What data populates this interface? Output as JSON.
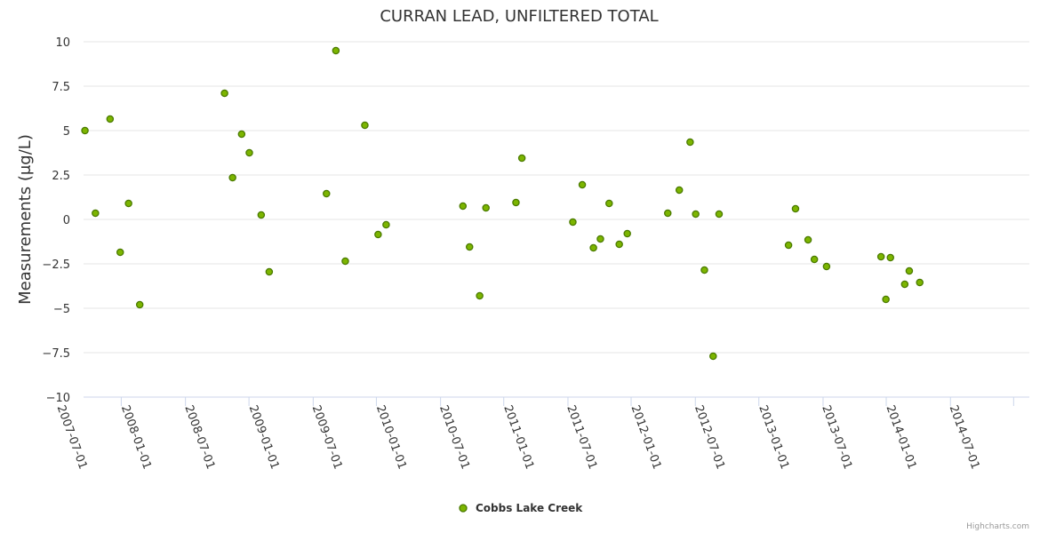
{
  "credits": "Highcharts.com",
  "chart_data": {
    "type": "scatter",
    "title": "CURRAN LEAD, UNFILTERED TOTAL",
    "ylabel": "Measurements (μg/L)",
    "xlabel": "",
    "ylim": [
      -10,
      10
    ],
    "yticks": [
      10,
      7.5,
      5,
      2.5,
      0,
      -2.5,
      -5,
      -7.5,
      -10
    ],
    "ytick_labels": [
      "10",
      "7.5",
      "5",
      "2.5",
      "0",
      "−2.5",
      "−5",
      "−7.5",
      "−10"
    ],
    "xlim": [
      "2007-03-15",
      "2014-08-15"
    ],
    "xticks": [
      "2007-07-01",
      "2008-01-01",
      "2008-07-01",
      "2009-01-01",
      "2009-07-01",
      "2010-01-01",
      "2010-07-01",
      "2011-01-01",
      "2011-07-01",
      "2012-01-01",
      "2012-07-01",
      "2013-01-01",
      "2013-07-01",
      "2014-01-01",
      "2014-07-01"
    ],
    "grid": true,
    "legend_position": "bottom-center",
    "series": [
      {
        "name": "Cobbs Lake Creek",
        "color": "#7cb500",
        "stroke": "#4a7a00",
        "points": [
          {
            "x": "2007-03-19",
            "y": 5.0
          },
          {
            "x": "2007-04-18",
            "y": 0.35
          },
          {
            "x": "2007-05-30",
            "y": 5.65
          },
          {
            "x": "2007-06-28",
            "y": -1.85
          },
          {
            "x": "2007-07-22",
            "y": 0.9
          },
          {
            "x": "2007-08-23",
            "y": -4.8
          },
          {
            "x": "2008-04-22",
            "y": 7.1
          },
          {
            "x": "2008-05-15",
            "y": 2.35
          },
          {
            "x": "2008-06-10",
            "y": 4.8
          },
          {
            "x": "2008-07-02",
            "y": 3.75
          },
          {
            "x": "2008-08-05",
            "y": 0.25
          },
          {
            "x": "2008-08-28",
            "y": -2.95
          },
          {
            "x": "2009-02-08",
            "y": 1.45
          },
          {
            "x": "2009-03-07",
            "y": 9.5
          },
          {
            "x": "2009-04-03",
            "y": -2.35
          },
          {
            "x": "2009-05-29",
            "y": 5.3
          },
          {
            "x": "2009-07-06",
            "y": -0.85
          },
          {
            "x": "2009-07-29",
            "y": -0.3
          },
          {
            "x": "2010-03-06",
            "y": 0.75
          },
          {
            "x": "2010-03-25",
            "y": -1.55
          },
          {
            "x": "2010-04-23",
            "y": -4.3
          },
          {
            "x": "2010-05-11",
            "y": 0.65
          },
          {
            "x": "2010-08-05",
            "y": 0.95
          },
          {
            "x": "2010-08-22",
            "y": 3.45
          },
          {
            "x": "2011-01-15",
            "y": -0.15
          },
          {
            "x": "2011-02-11",
            "y": 1.95
          },
          {
            "x": "2011-03-15",
            "y": -1.6
          },
          {
            "x": "2011-04-04",
            "y": -1.1
          },
          {
            "x": "2011-04-29",
            "y": 0.9
          },
          {
            "x": "2011-05-28",
            "y": -1.4
          },
          {
            "x": "2011-06-20",
            "y": -0.8
          },
          {
            "x": "2011-10-14",
            "y": 0.35
          },
          {
            "x": "2011-11-16",
            "y": 1.65
          },
          {
            "x": "2011-12-17",
            "y": 4.35
          },
          {
            "x": "2012-01-02",
            "y": 0.3
          },
          {
            "x": "2012-01-27",
            "y": -2.85
          },
          {
            "x": "2012-02-21",
            "y": -7.7
          },
          {
            "x": "2012-03-09",
            "y": 0.3
          },
          {
            "x": "2012-09-24",
            "y": -1.45
          },
          {
            "x": "2012-10-14",
            "y": 0.6
          },
          {
            "x": "2012-11-19",
            "y": -1.15
          },
          {
            "x": "2012-12-07",
            "y": -2.25
          },
          {
            "x": "2013-01-11",
            "y": -2.65
          },
          {
            "x": "2013-06-16",
            "y": -2.1
          },
          {
            "x": "2013-06-30",
            "y": -4.5
          },
          {
            "x": "2013-07-13",
            "y": -2.15
          },
          {
            "x": "2013-08-23",
            "y": -3.65
          },
          {
            "x": "2013-09-05",
            "y": -2.9
          },
          {
            "x": "2013-10-05",
            "y": -3.55
          }
        ]
      }
    ]
  }
}
